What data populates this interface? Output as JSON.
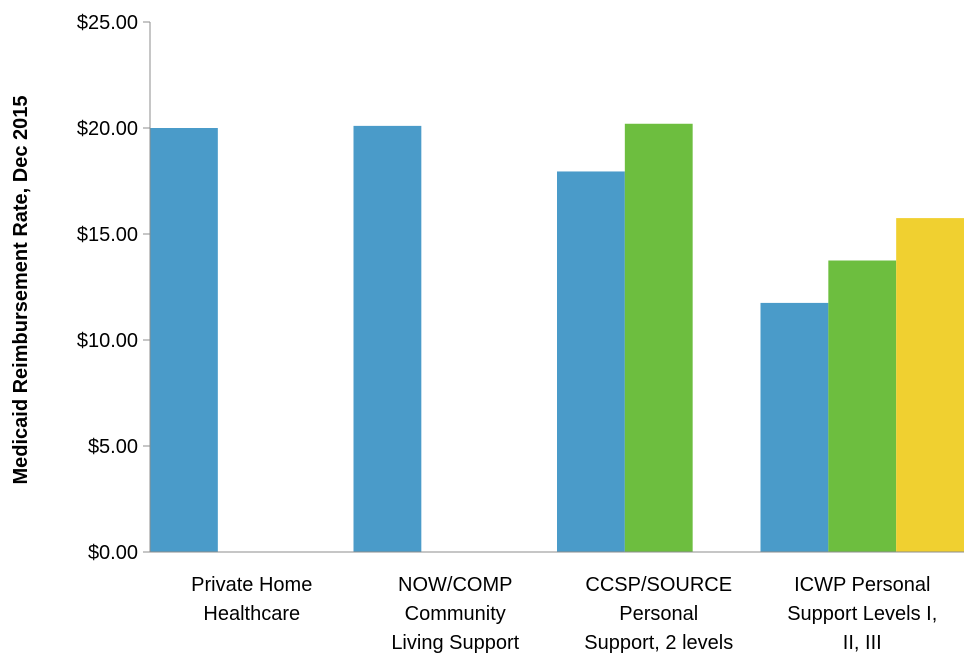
{
  "chart_data": {
    "type": "bar",
    "title": "",
    "xlabel": "",
    "ylabel": "Medicaid Reimbursement Rate, Dec 2015",
    "ylim": [
      0,
      25
    ],
    "yticks": [
      "$0.00",
      "$5.00",
      "$10.00",
      "$15.00",
      "$20.00",
      "$25.00"
    ],
    "ytick_values": [
      0,
      5,
      10,
      15,
      20,
      25
    ],
    "grid": false,
    "legend": "none",
    "categories": [
      [
        "Private Home",
        "Healthcare"
      ],
      [
        "NOW/COMP",
        "Community",
        "Living Support"
      ],
      [
        "CCSP/SOURCE",
        "Personal",
        "Support, 2 levels"
      ],
      [
        "ICWP Personal",
        "Support Levels I,",
        "II, III"
      ]
    ],
    "series": [
      {
        "color": "#4A9BC9",
        "values": [
          20.0,
          20.1,
          17.95,
          11.75
        ]
      },
      {
        "color": "#6DBE3F",
        "values": [
          null,
          null,
          20.2,
          13.75
        ]
      },
      {
        "color": "#F0D030",
        "values": [
          null,
          null,
          null,
          15.75
        ]
      }
    ]
  }
}
